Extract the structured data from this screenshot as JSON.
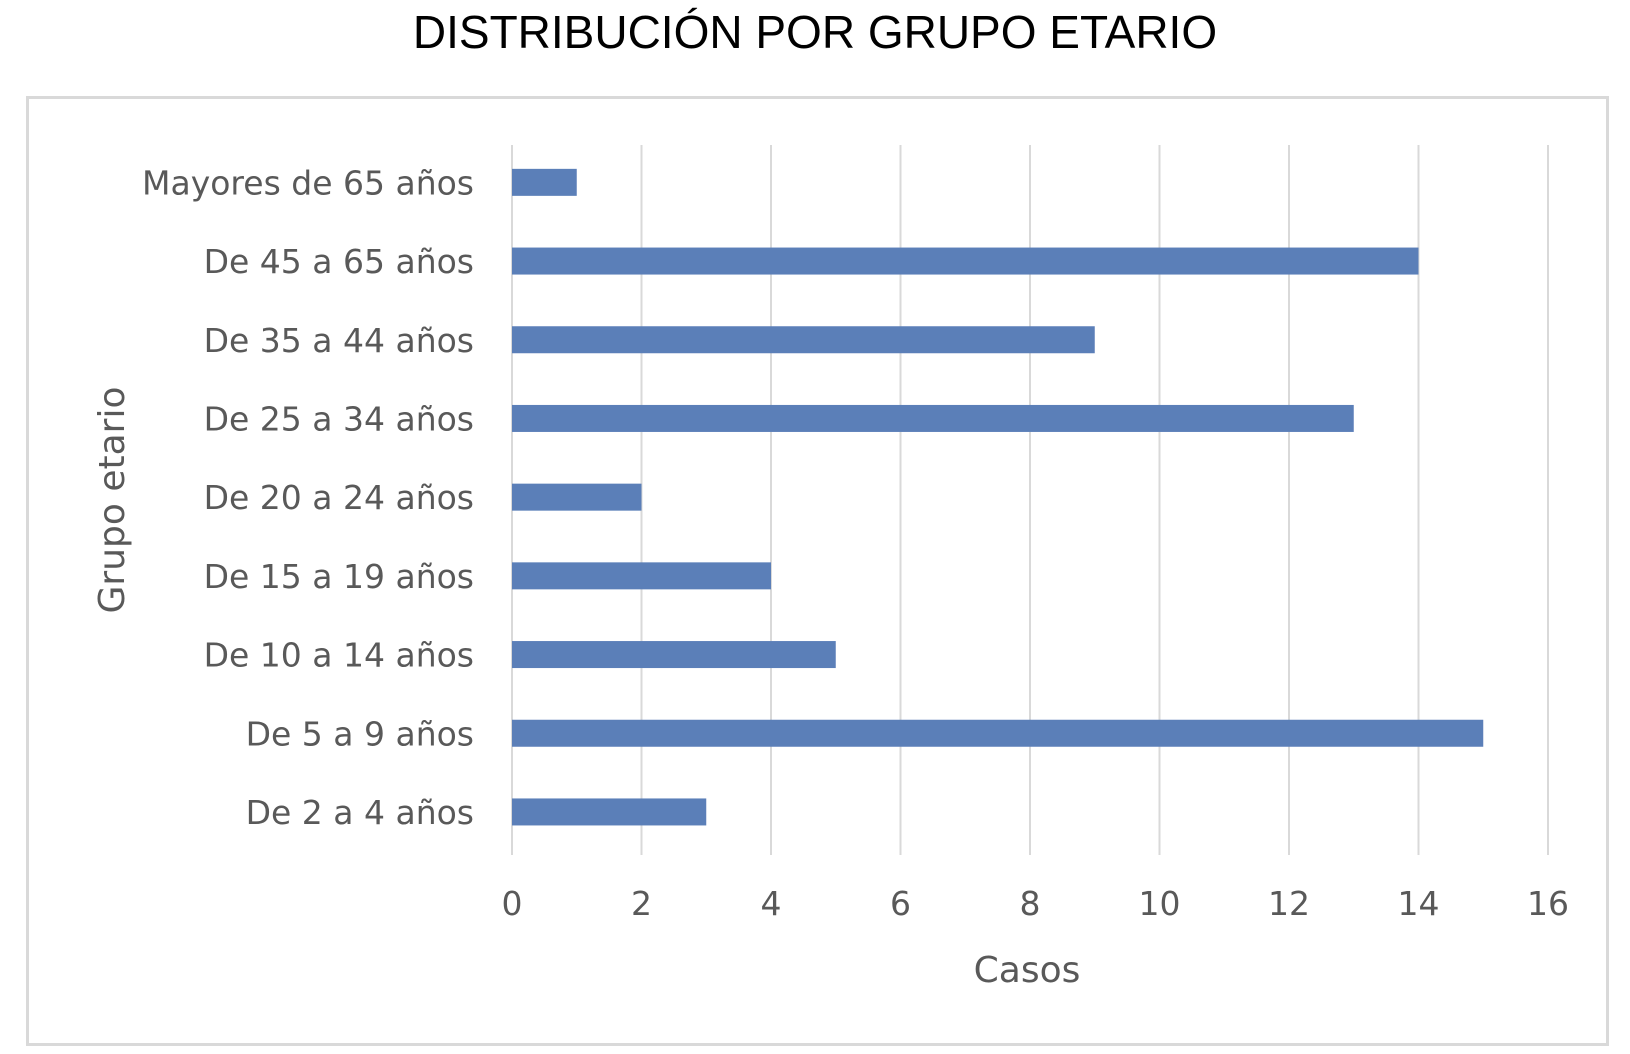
{
  "chart_data": {
    "type": "bar",
    "orientation": "horizontal",
    "title": "DISTRIBUCIÓN POR GRUPO ETARIO",
    "xlabel": "Casos",
    "ylabel": "Grupo etario",
    "xlim": [
      0,
      16
    ],
    "xticks": [
      "0",
      "2",
      "4",
      "6",
      "8",
      "10",
      "12",
      "14",
      "16"
    ],
    "grid": "vertical",
    "categories": [
      "Mayores de 65 años",
      "De 45 a 65 años",
      "De 35 a 44 años",
      "De 25 a 34 años",
      "De 20 a 24 años",
      "De 15 a 19 años",
      "De 10 a 14 años",
      "De 5 a 9 años",
      "De 2 a 4 años"
    ],
    "values": [
      1,
      14,
      9,
      13,
      2,
      4,
      5,
      15,
      3
    ],
    "colors": {
      "bar": "#5b7fb8",
      "grid": "#d9d9d9",
      "text": "#595959"
    }
  }
}
